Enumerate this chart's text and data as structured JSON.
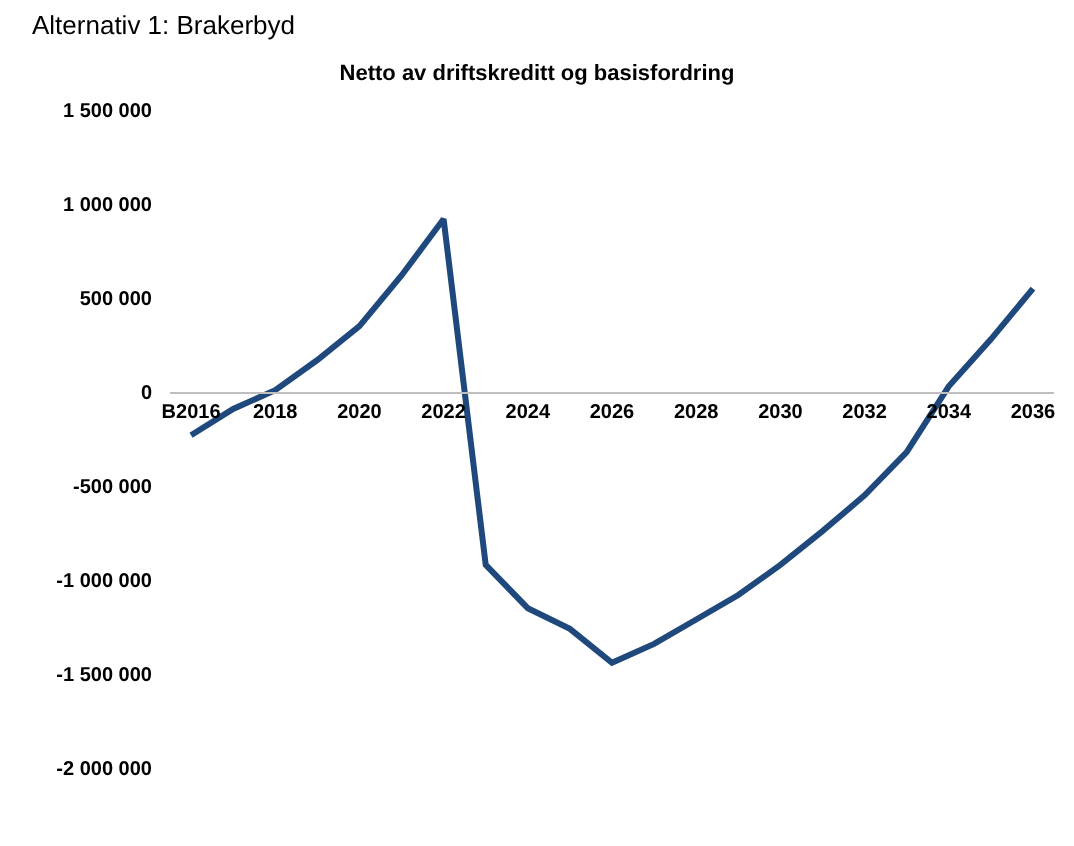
{
  "chart_data": {
    "type": "line",
    "title": "Netto av driftskreditt og basisfordring",
    "annotations": [
      "Alternativ 1: Brakerbyd"
    ],
    "categories": [
      "B2016",
      null,
      "2018",
      null,
      "2020",
      null,
      "2022",
      null,
      "2024",
      null,
      "2026",
      null,
      "2028",
      null,
      "2030",
      null,
      "2032",
      null,
      "2034",
      null,
      "2036"
    ],
    "series": [
      {
        "color": "#1f497d",
        "values": [
          -230000,
          -90000,
          10000,
          170000,
          350000,
          620000,
          920000,
          -920000,
          -1150000,
          -1260000,
          -1440000,
          -1340000,
          -1210000,
          -1080000,
          -920000,
          -740000,
          -550000,
          -320000,
          30000,
          280000,
          550000
        ]
      }
    ],
    "ylim": [
      -2000000,
      1500000
    ],
    "yticks": [
      {
        "value": -2000000,
        "label": "-2 000 000"
      },
      {
        "value": -1500000,
        "label": "-1 500 000"
      },
      {
        "value": -1000000,
        "label": "-1 000 000"
      },
      {
        "value": -500000,
        "label": "-500 000"
      },
      0,
      {
        "value": 500000,
        "label": "500 000"
      },
      {
        "value": 1000000,
        "label": "1 000 000"
      },
      {
        "value": 1500000,
        "label": "1 500 000"
      }
    ],
    "marker": "none",
    "line_style": "solid"
  }
}
